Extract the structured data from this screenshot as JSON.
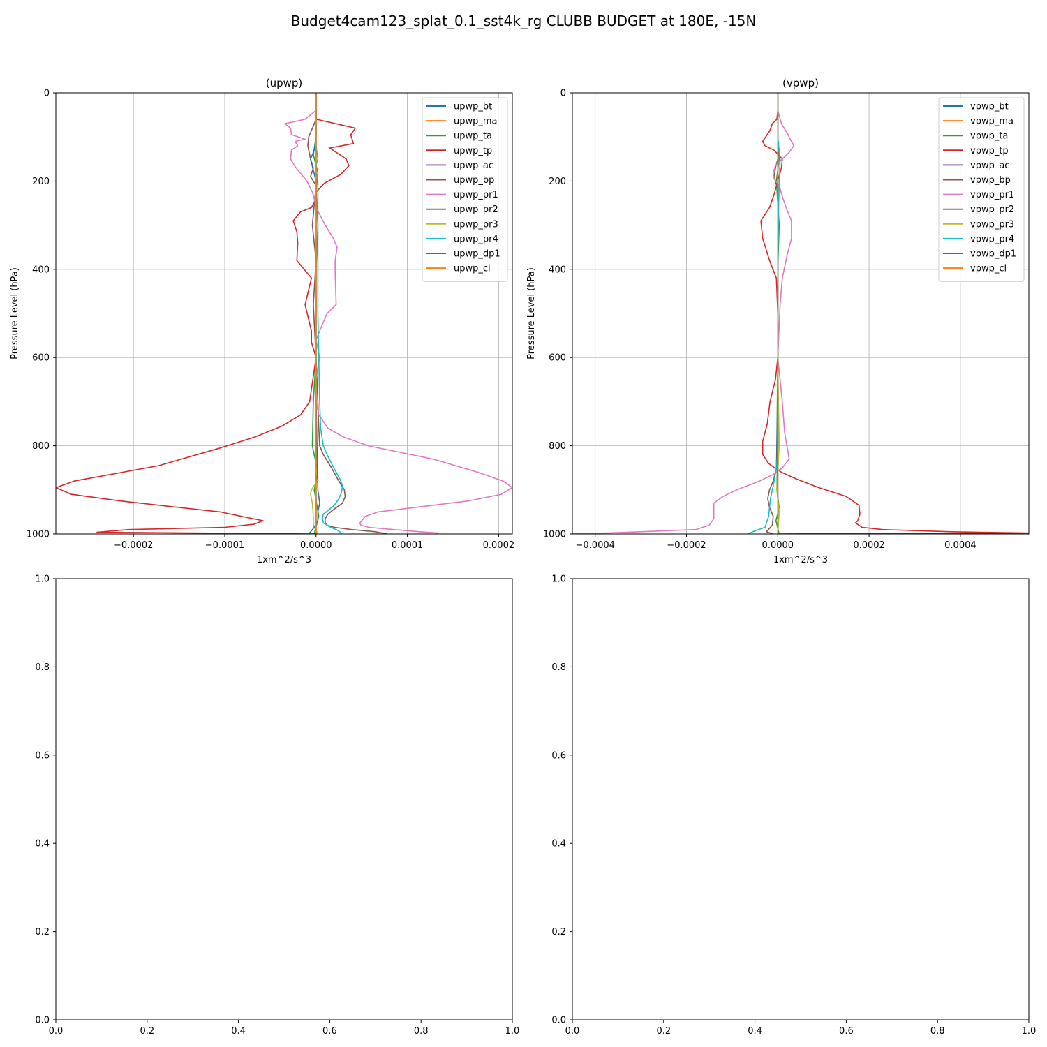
{
  "figure": {
    "suptitle": "Budget4cam123_splat_0.1_sst4k_rg CLUBB BUDGET at 180E, -15N"
  },
  "colors": [
    "#1f77b4",
    "#ff7f0e",
    "#2ca02c",
    "#d62728",
    "#9467bd",
    "#8c564b",
    "#e377c2",
    "#7f7f7f",
    "#bcbd22",
    "#17becf",
    "#1f77b4",
    "#ff7f0e"
  ],
  "chart_data": [
    {
      "type": "line",
      "title": "(upwp)",
      "xlabel": "1xm^2/s^3",
      "ylabel": "Pressure Level (hPa)",
      "xlim": [
        -0.000285,
        0.000215
      ],
      "ylim": [
        1000,
        0
      ],
      "xticks": [
        -0.0002,
        -0.0001,
        0.0,
        0.0001,
        0.0002
      ],
      "xtick_labels": [
        "−0.0002",
        "−0.0001",
        "0.0000",
        "0.0001",
        "0.0002"
      ],
      "yticks": [
        0,
        200,
        400,
        600,
        800,
        1000
      ],
      "ytick_labels": [
        "0",
        "200",
        "400",
        "600",
        "800",
        "1000"
      ],
      "grid": true,
      "legend": "top-right",
      "series": [
        {
          "name": "upwp_bt",
          "x": [
            0,
            0,
            0,
            0,
            0,
            0
          ],
          "y": [
            0,
            200,
            400,
            600,
            800,
            1000
          ]
        },
        {
          "name": "upwp_ma",
          "x": [
            0,
            0,
            0,
            0,
            0,
            0
          ],
          "y": [
            0,
            200,
            400,
            600,
            800,
            1000
          ]
        },
        {
          "name": "upwp_ta",
          "x": [
            0,
            0,
            -3e-06,
            2e-06,
            0,
            2e-06,
            0,
            0,
            -3e-06,
            -4e-06,
            2e-06,
            -2e-06,
            3e-06,
            -2e-06
          ],
          "y": [
            0,
            100,
            140,
            180,
            220,
            300,
            400,
            600,
            700,
            800,
            860,
            900,
            960,
            1000
          ]
        },
        {
          "name": "upwp_tp",
          "x": [
            0,
            0,
            0,
            4e-07,
            4.3e-05,
            3.8e-05,
            4.1e-05,
            1.5e-05,
            3.3e-05,
            3.6e-05,
            2.7e-05,
            9e-06,
            0,
            0,
            -5e-06,
            -1.7e-05,
            -2.5e-05,
            -2.1e-05,
            -2e-05,
            -2.1e-05,
            -5e-06,
            -1.2e-05,
            -5e-06,
            -5e-06,
            0,
            -7e-06,
            -1.7e-05,
            -3.7e-05,
            -6.7e-05,
            -0.000105,
            -0.000172,
            -0.000265,
            -0.000285,
            -0.000268,
            -0.000215,
            -0.000105,
            -7e-05,
            -5.8e-05,
            -6.8e-05,
            -0.0001,
            -0.000205,
            -0.00024,
            4e-07
          ],
          "y": [
            0,
            20,
            40,
            60,
            80,
            95,
            115,
            125,
            150,
            165,
            185,
            205,
            225,
            240,
            260,
            270,
            290,
            315,
            340,
            380,
            420,
            480,
            540,
            565,
            600,
            700,
            730,
            755,
            780,
            805,
            845,
            880,
            895,
            910,
            925,
            950,
            965,
            970,
            978,
            985,
            990,
            996,
            1000
          ]
        },
        {
          "name": "upwp_ac",
          "x": [
            0,
            0,
            0,
            0,
            0,
            0
          ],
          "y": [
            0,
            200,
            400,
            600,
            800,
            1000
          ]
        },
        {
          "name": "upwp_bp",
          "x": [
            0,
            0,
            -3e-06,
            -8e-06,
            -9e-06,
            -6e-06,
            -3e-06,
            -6e-06,
            0,
            -4e-06,
            0,
            -3e-06,
            -2e-06,
            0,
            2e-06,
            3e-06,
            4e-06,
            8e-06,
            1.7e-05,
            2.5e-05,
            3.1e-05,
            3.2e-05,
            2.9e-05,
            1.9e-05,
            1.3e-05,
            1e-05,
            1e-05,
            1.2e-05,
            2e-05,
            3.9e-05,
            6.5e-05,
            7.8e-05
          ],
          "y": [
            0,
            60,
            75,
            100,
            120,
            150,
            170,
            190,
            210,
            300,
            380,
            480,
            520,
            600,
            700,
            760,
            800,
            820,
            850,
            880,
            900,
            915,
            930,
            945,
            955,
            965,
            975,
            980,
            985,
            990,
            995,
            1000
          ]
        },
        {
          "name": "upwp_pr1",
          "x": [
            0,
            0,
            0,
            -1.2e-05,
            -3.4e-05,
            -2.8e-05,
            -2.7e-05,
            -1.2e-05,
            -2.3e-05,
            -2e-05,
            -2.7e-05,
            -2.8e-05,
            -2.2e-05,
            -1e-05,
            -4e-06,
            -2e-06,
            0,
            1e-05,
            1.9e-05,
            2.3e-05,
            2.1e-05,
            2.1e-05,
            2.2e-05,
            1.2e-05,
            4e-06,
            0,
            4e-06,
            0,
            0,
            3e-06,
            1.3e-05,
            3e-05,
            5.7e-05,
            0.000128,
            0.000177,
            0.000205,
            0.000215,
            0.000203,
            0.000167,
            0.000108,
            6.8e-05,
            5.4e-05,
            4.8e-05,
            4.9e-05,
            5.8e-05,
            8.5e-05,
            0.000113,
            0.000134
          ],
          "y": [
            0,
            20,
            40,
            60,
            70,
            80,
            95,
            105,
            110,
            120,
            130,
            150,
            170,
            200,
            225,
            240,
            260,
            300,
            330,
            350,
            380,
            410,
            480,
            500,
            540,
            560,
            600,
            650,
            700,
            730,
            760,
            780,
            800,
            830,
            860,
            880,
            895,
            910,
            925,
            940,
            950,
            960,
            975,
            980,
            985,
            990,
            995,
            998
          ]
        },
        {
          "name": "upwp_pr2",
          "x": [
            0,
            0,
            0,
            0,
            0,
            0
          ],
          "y": [
            0,
            200,
            400,
            600,
            800,
            1000
          ]
        },
        {
          "name": "upwp_pr3",
          "x": [
            0,
            0,
            0,
            0,
            0,
            0,
            2e-06,
            2e-06,
            -2e-06,
            -5e-06,
            -6e-06,
            -5e-06,
            -4e-06,
            -3e-06,
            -3e-06,
            2e-06
          ],
          "y": [
            0,
            200,
            400,
            600,
            800,
            850,
            870,
            880,
            890,
            900,
            910,
            920,
            930,
            960,
            980,
            1000
          ]
        },
        {
          "name": "upwp_pr4",
          "x": [
            0,
            0,
            0,
            2e-06,
            -1e-06,
            2e-06,
            2e-06,
            2e-06,
            2e-06,
            4e-06,
            5e-06,
            8e-06,
            1.2e-05,
            1.7e-05,
            2.2e-05,
            2.6e-05,
            2.9e-05,
            2.8e-05,
            2.5e-05,
            2e-05,
            1.4e-05,
            8e-06,
            7e-06,
            8e-06,
            1.6e-05,
            2.2e-05,
            2.6e-05,
            2.8e-05
          ],
          "y": [
            0,
            100,
            120,
            150,
            170,
            200,
            300,
            400,
            500,
            700,
            760,
            800,
            820,
            840,
            860,
            875,
            890,
            905,
            920,
            935,
            945,
            955,
            965,
            975,
            985,
            990,
            995,
            1000
          ]
        },
        {
          "name": "upwp_dp1",
          "x": [
            0,
            0,
            -2e-06,
            -6e-06,
            0,
            0,
            0,
            2e-06,
            4e-06,
            2e-06,
            2e-06,
            -2e-06,
            -8e-06
          ],
          "y": [
            0,
            100,
            130,
            150,
            200,
            400,
            700,
            900,
            930,
            950,
            970,
            985,
            1000
          ]
        },
        {
          "name": "upwp_cl",
          "x": [
            0,
            0,
            0,
            0,
            0,
            0
          ],
          "y": [
            0,
            200,
            400,
            600,
            800,
            1000
          ]
        }
      ]
    },
    {
      "type": "line",
      "title": "(vpwp)",
      "xlabel": "1xm^2/s^3",
      "ylabel": "Pressure Level (hPa)",
      "xlim": [
        -0.00045,
        0.00055
      ],
      "ylim": [
        1000,
        0
      ],
      "xticks": [
        -0.0004,
        -0.0002,
        0.0,
        0.0002,
        0.0004
      ],
      "xtick_labels": [
        "−0.0004",
        "−0.0002",
        "0.0000",
        "0.0002",
        "0.0004"
      ],
      "yticks": [
        0,
        200,
        400,
        600,
        800,
        1000
      ],
      "ytick_labels": [
        "0",
        "200",
        "400",
        "600",
        "800",
        "1000"
      ],
      "grid": true,
      "legend": "top-right",
      "series": [
        {
          "name": "vpwp_bt",
          "x": [
            0,
            0,
            0,
            0,
            0,
            0
          ],
          "y": [
            0,
            200,
            400,
            600,
            800,
            1000
          ]
        },
        {
          "name": "vpwp_ma",
          "x": [
            0,
            0,
            0,
            0,
            0,
            0
          ],
          "y": [
            0,
            200,
            400,
            600,
            800,
            1000
          ]
        },
        {
          "name": "vpwp_ta",
          "x": [
            0,
            0,
            3e-06,
            -3e-06,
            3e-06,
            0,
            0,
            0,
            -2e-06,
            3e-06,
            -4e-06,
            3e-06
          ],
          "y": [
            0,
            100,
            150,
            200,
            300,
            400,
            600,
            800,
            900,
            940,
            970,
            1000
          ]
        },
        {
          "name": "vpwp_tp",
          "x": [
            0,
            0,
            0,
            -2e-06,
            -1.2e-05,
            -1.7e-05,
            -3.3e-05,
            -2.8e-05,
            -8e-06,
            1e-05,
            8e-06,
            0,
            -8e-06,
            -1.8e-05,
            -3.7e-05,
            -3.3e-05,
            -1.8e-05,
            -3e-06,
            0,
            0,
            -5e-06,
            -1.7e-05,
            -2.3e-05,
            -3.3e-05,
            -3.3e-05,
            -2e-05,
            -7e-06,
            8e-06,
            4e-05,
            9e-05,
            0.00015,
            0.000178,
            0.00018,
            0.000175,
            0.00017,
            0.000185,
            0.00023,
            0.00038,
            0.00055,
            0.00015,
            1e-07
          ],
          "y": [
            0,
            20,
            40,
            60,
            70,
            85,
            110,
            120,
            130,
            150,
            170,
            200,
            230,
            260,
            290,
            330,
            380,
            420,
            500,
            600,
            650,
            700,
            750,
            790,
            820,
            840,
            850,
            860,
            875,
            895,
            915,
            935,
            955,
            970,
            975,
            985,
            990,
            995,
            998,
            999,
            1000
          ]
        },
        {
          "name": "vpwp_ac",
          "x": [
            0,
            0,
            0,
            0,
            0,
            0
          ],
          "y": [
            0,
            200,
            400,
            600,
            800,
            1000
          ]
        },
        {
          "name": "vpwp_bp",
          "x": [
            0,
            0,
            -5e-06,
            -8e-06,
            -5e-06,
            0,
            0,
            0,
            -3e-06,
            -1e-05,
            -1.8e-05,
            -2.2e-05,
            -1.8e-05,
            -1e-05,
            -1.2e-05,
            -2.5e-05,
            -1e-05
          ],
          "y": [
            0,
            150,
            170,
            190,
            200,
            220,
            500,
            700,
            850,
            880,
            900,
            920,
            940,
            960,
            980,
            995,
            1000
          ]
        },
        {
          "name": "vpwp_pr1",
          "x": [
            0,
            0,
            0,
            8e-06,
            2e-05,
            3e-05,
            3.5e-05,
            2.5e-05,
            1e-05,
            -5e-06,
            -1e-05,
            -8e-06,
            3e-06,
            1e-05,
            2e-05,
            3e-05,
            3e-05,
            2e-05,
            1e-05,
            5e-06,
            0,
            5e-06,
            1e-05,
            1.5e-05,
            2.5e-05,
            1e-05,
            -1e-05,
            -4e-05,
            -9e-05,
            -0.00012,
            -0.00014,
            -0.00014,
            -0.00014,
            -0.00015,
            -0.00018,
            -0.00035,
            -0.00045
          ],
          "y": [
            0,
            20,
            40,
            70,
            90,
            110,
            120,
            135,
            150,
            165,
            180,
            195,
            210,
            235,
            265,
            290,
            330,
            370,
            420,
            480,
            600,
            650,
            700,
            770,
            830,
            850,
            865,
            880,
            900,
            915,
            930,
            950,
            965,
            980,
            990,
            997,
            1000
          ]
        },
        {
          "name": "vpwp_pr2",
          "x": [
            0,
            0,
            0,
            0,
            0,
            0
          ],
          "y": [
            0,
            200,
            400,
            600,
            800,
            1000
          ]
        },
        {
          "name": "vpwp_pr3",
          "x": [
            0,
            0,
            0,
            3e-06,
            -2e-06,
            3e-06,
            0
          ],
          "y": [
            0,
            200,
            600,
            800,
            900,
            950,
            1000
          ]
        },
        {
          "name": "vpwp_pr4",
          "x": [
            0,
            0,
            5e-06,
            2e-06,
            0,
            0,
            0,
            -3e-06,
            -8e-06,
            -1.2e-05,
            -1.6e-05,
            -1.8e-05,
            -2e-05,
            -2.8e-05,
            -5.5e-05,
            -6.5e-05
          ],
          "y": [
            0,
            100,
            150,
            250,
            400,
            600,
            800,
            850,
            880,
            900,
            920,
            940,
            960,
            985,
            995,
            1000
          ]
        },
        {
          "name": "vpwp_dp1",
          "x": [
            0,
            0,
            0,
            0,
            -2e-06,
            0,
            0
          ],
          "y": [
            0,
            200,
            400,
            600,
            800,
            900,
            1000
          ]
        },
        {
          "name": "vpwp_cl",
          "x": [
            0,
            0,
            0,
            0,
            0,
            0
          ],
          "y": [
            0,
            200,
            400,
            600,
            800,
            1000
          ]
        }
      ]
    },
    {
      "type": "line",
      "title": "",
      "xlim": [
        0,
        1
      ],
      "ylim": [
        0,
        1
      ],
      "xticks": [
        0.0,
        0.2,
        0.4,
        0.6,
        0.8,
        1.0
      ],
      "xtick_labels": [
        "0.0",
        "0.2",
        "0.4",
        "0.6",
        "0.8",
        "1.0"
      ],
      "yticks": [
        0.0,
        0.2,
        0.4,
        0.6,
        0.8,
        1.0
      ],
      "ytick_labels": [
        "0.0",
        "0.2",
        "0.4",
        "0.6",
        "0.8",
        "1.0"
      ],
      "grid": false,
      "series": []
    },
    {
      "type": "line",
      "title": "",
      "xlim": [
        0,
        1
      ],
      "ylim": [
        0,
        1
      ],
      "xticks": [
        0.0,
        0.2,
        0.4,
        0.6,
        0.8,
        1.0
      ],
      "xtick_labels": [
        "0.0",
        "0.2",
        "0.4",
        "0.6",
        "0.8",
        "1.0"
      ],
      "yticks": [
        0.0,
        0.2,
        0.4,
        0.6,
        0.8,
        1.0
      ],
      "ytick_labels": [
        "0.0",
        "0.2",
        "0.4",
        "0.6",
        "0.8",
        "1.0"
      ],
      "grid": false,
      "series": []
    }
  ]
}
